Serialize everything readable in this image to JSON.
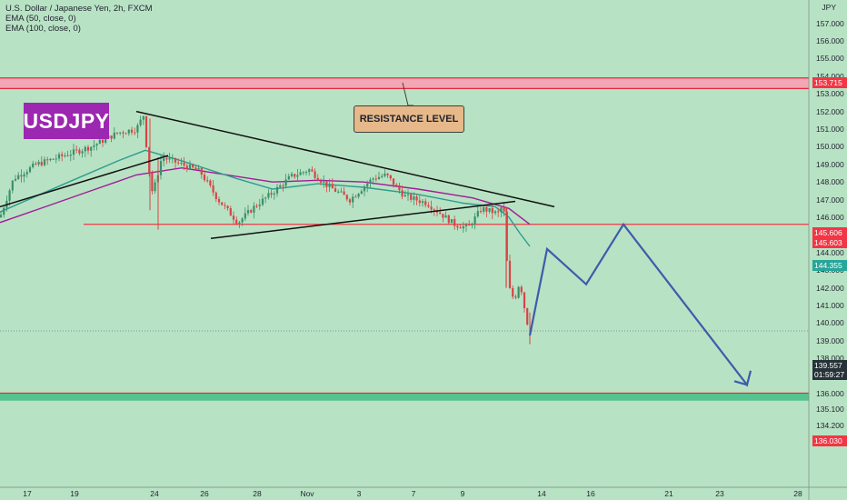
{
  "legend": {
    "title": "U.S. Dollar / Japanese Yen, 2h, FXCM",
    "ema50": "EMA (50, close, 0)",
    "ema100": "EMA (100, close, 0)"
  },
  "symbol": "USDJPY",
  "annotation": "RESISTANCE LEVEL",
  "axis_currency": "JPY",
  "badges": {
    "resistance": "153.715",
    "level_a": "145.606",
    "level_b": "145.603",
    "ema": "144.355",
    "price": "139.557",
    "countdown": "01:59:27",
    "support": "136.030"
  },
  "colors": {
    "background": "#b8e2c4",
    "resistance_zone": "#f2a7b4",
    "support_zone": "#58c28e",
    "ema50": "#2e9c8e",
    "ema100": "#a01c98",
    "projection": "#3d5cab",
    "trendline": "#111111",
    "level_line": "#f23645"
  },
  "chart_data": {
    "type": "line",
    "title": "U.S. Dollar / Japanese Yen, 2h, FXCM",
    "y_ticks": [
      "157.000",
      "156.000",
      "155.000",
      "154.000",
      "153.000",
      "152.000",
      "151.000",
      "150.000",
      "149.000",
      "148.000",
      "147.000",
      "146.000",
      "145.000",
      "144.000",
      "143.000",
      "142.000",
      "141.000",
      "140.000",
      "139.000",
      "138.000",
      "137.000",
      "136.000",
      "135.100",
      "134.200"
    ],
    "x_ticks": [
      "17",
      "19",
      "24",
      "26",
      "28",
      "Nov",
      "3",
      "7",
      "9",
      "14",
      "16",
      "21",
      "23",
      "28"
    ],
    "ylim": [
      134.2,
      157.4
    ],
    "price_path": [
      {
        "x": 0,
        "y": 146.0
      },
      {
        "x": 15,
        "y": 148.2
      },
      {
        "x": 40,
        "y": 149.0
      },
      {
        "x": 70,
        "y": 149.5
      },
      {
        "x": 100,
        "y": 150.0
      },
      {
        "x": 130,
        "y": 150.8
      },
      {
        "x": 150,
        "y": 151.0
      },
      {
        "x": 158,
        "y": 151.8
      },
      {
        "x": 163,
        "y": 149.0
      },
      {
        "x": 168,
        "y": 147.3
      },
      {
        "x": 178,
        "y": 149.4
      },
      {
        "x": 200,
        "y": 149.0
      },
      {
        "x": 220,
        "y": 148.6
      },
      {
        "x": 240,
        "y": 147.0
      },
      {
        "x": 262,
        "y": 145.7
      },
      {
        "x": 280,
        "y": 146.6
      },
      {
        "x": 300,
        "y": 147.4
      },
      {
        "x": 320,
        "y": 148.3
      },
      {
        "x": 340,
        "y": 148.7
      },
      {
        "x": 360,
        "y": 147.8
      },
      {
        "x": 385,
        "y": 147.0
      },
      {
        "x": 410,
        "y": 148.2
      },
      {
        "x": 425,
        "y": 148.4
      },
      {
        "x": 445,
        "y": 147.2
      },
      {
        "x": 470,
        "y": 146.8
      },
      {
        "x": 500,
        "y": 145.6
      },
      {
        "x": 515,
        "y": 145.4
      },
      {
        "x": 530,
        "y": 146.5
      },
      {
        "x": 548,
        "y": 146.2
      },
      {
        "x": 554,
        "y": 146.8
      },
      {
        "x": 557,
        "y": 144.0
      },
      {
        "x": 560,
        "y": 142.0
      },
      {
        "x": 566,
        "y": 141.3
      },
      {
        "x": 572,
        "y": 142.4
      },
      {
        "x": 578,
        "y": 140.6
      },
      {
        "x": 583,
        "y": 139.3
      }
    ],
    "ema50_path": [
      {
        "x": 0,
        "y": 146.3
      },
      {
        "x": 40,
        "y": 147.2
      },
      {
        "x": 80,
        "y": 148.1
      },
      {
        "x": 130,
        "y": 149.2
      },
      {
        "x": 160,
        "y": 149.8
      },
      {
        "x": 200,
        "y": 149.2
      },
      {
        "x": 260,
        "y": 148.2
      },
      {
        "x": 300,
        "y": 147.6
      },
      {
        "x": 350,
        "y": 147.9
      },
      {
        "x": 400,
        "y": 147.7
      },
      {
        "x": 460,
        "y": 147.3
      },
      {
        "x": 510,
        "y": 146.8
      },
      {
        "x": 545,
        "y": 146.6
      },
      {
        "x": 560,
        "y": 146.0
      },
      {
        "x": 572,
        "y": 145.1
      },
      {
        "x": 583,
        "y": 144.35
      }
    ],
    "ema100_path": [
      {
        "x": 0,
        "y": 145.7
      },
      {
        "x": 50,
        "y": 146.6
      },
      {
        "x": 100,
        "y": 147.5
      },
      {
        "x": 150,
        "y": 148.4
      },
      {
        "x": 200,
        "y": 148.8
      },
      {
        "x": 250,
        "y": 148.4
      },
      {
        "x": 300,
        "y": 148.0
      },
      {
        "x": 350,
        "y": 148.1
      },
      {
        "x": 400,
        "y": 148.0
      },
      {
        "x": 460,
        "y": 147.6
      },
      {
        "x": 520,
        "y": 147.1
      },
      {
        "x": 560,
        "y": 146.5
      },
      {
        "x": 583,
        "y": 145.6
      }
    ],
    "projection_path": [
      {
        "x": 583,
        "y": 139.3
      },
      {
        "x": 602,
        "y": 144.2
      },
      {
        "x": 645,
        "y": 142.2
      },
      {
        "x": 686,
        "y": 145.6
      },
      {
        "x": 822,
        "y": 136.5
      },
      {
        "x": 826,
        "y": 137.3
      }
    ],
    "trendlines": [
      {
        "from": {
          "x": 150,
          "y": 152.0
        },
        "to": {
          "x": 610,
          "y": 146.6
        }
      },
      {
        "from": {
          "x": 0,
          "y": 146.6
        },
        "to": {
          "x": 185,
          "y": 149.5
        }
      },
      {
        "from": {
          "x": 232,
          "y": 144.8
        },
        "to": {
          "x": 567,
          "y": 146.9
        }
      }
    ],
    "levels": [
      {
        "y": 153.715,
        "kind": "resistance"
      },
      {
        "y": 145.6,
        "kind": "support"
      },
      {
        "y": 136.03,
        "kind": "support"
      }
    ],
    "current_price": 139.557
  }
}
